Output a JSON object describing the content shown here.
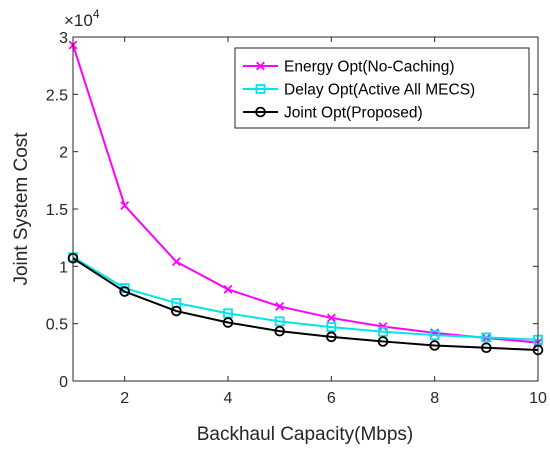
{
  "chart_data": {
    "type": "line",
    "xlabel": "Backhaul Capacity(Mbps)",
    "ylabel": "Joint System Cost",
    "y_exponent_label": {
      "base": "×10",
      "power": "4"
    },
    "xlim": [
      1,
      10
    ],
    "ylim": [
      0,
      3
    ],
    "xticks": [
      2,
      4,
      6,
      8,
      10
    ],
    "yticks": [
      0,
      0.5,
      1,
      1.5,
      2,
      2.5,
      3
    ],
    "ytick_labels": [
      "0",
      "0.5",
      "1",
      "1.5",
      "2",
      "2.5",
      "3"
    ],
    "legend_position": "top-right",
    "grid": false,
    "x": [
      1,
      2,
      3,
      4,
      5,
      6,
      7,
      8,
      9,
      10
    ],
    "series": [
      {
        "name": "Energy Opt(No-Caching)",
        "color": "#ff00ff",
        "marker": "x",
        "values": [
          2.93,
          1.53,
          1.04,
          0.8,
          0.65,
          0.55,
          0.475,
          0.42,
          0.375,
          0.335
        ]
      },
      {
        "name": "Delay Opt(Active All MECS)",
        "color": "#00e5e5",
        "marker": "square",
        "values": [
          1.08,
          0.81,
          0.68,
          0.59,
          0.52,
          0.47,
          0.43,
          0.4,
          0.38,
          0.36
        ]
      },
      {
        "name": "Joint Opt(Proposed)",
        "color": "#000000",
        "marker": "circle",
        "values": [
          1.07,
          0.78,
          0.61,
          0.51,
          0.435,
          0.385,
          0.345,
          0.31,
          0.29,
          0.27
        ]
      }
    ]
  }
}
